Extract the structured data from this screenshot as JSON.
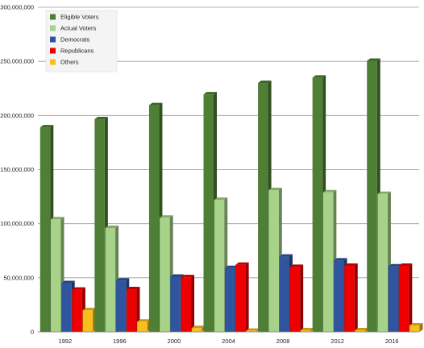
{
  "chart_data": {
    "type": "bar",
    "title": "",
    "xlabel": "",
    "ylabel": "",
    "ylim": [
      0,
      300000000
    ],
    "grid": true,
    "legend_position": "top-left",
    "categories": [
      "1992",
      "1996",
      "2000",
      "2004",
      "2008",
      "2012",
      "2016"
    ],
    "y_ticks": [
      "0",
      "50,000,000",
      "100,000,000",
      "150,000,000",
      "200,000,000",
      "250,000,000",
      "300,000,000"
    ],
    "series": [
      {
        "name": "Eligible Voters",
        "color": "#4f7f35",
        "values": [
          189000000,
          196500000,
          209500000,
          219500000,
          230000000,
          235000000,
          250500000
        ]
      },
      {
        "name": "Actual Voters",
        "color": "#a6d388",
        "values": [
          104000000,
          96000000,
          105500000,
          122000000,
          131000000,
          129000000,
          127500000
        ]
      },
      {
        "name": "Democrats",
        "color": "#2e559d",
        "values": [
          45000000,
          47500000,
          51000000,
          59000000,
          69500000,
          66000000,
          60500000
        ]
      },
      {
        "name": "Republicans",
        "color": "#ee0000",
        "values": [
          39000000,
          39500000,
          50500000,
          62000000,
          60000000,
          61000000,
          61000000
        ]
      },
      {
        "name": "Others",
        "color": "#f7bf1e",
        "values": [
          20000000,
          9500000,
          3500000,
          1000000,
          1500000,
          1500000,
          6000000
        ]
      }
    ]
  }
}
